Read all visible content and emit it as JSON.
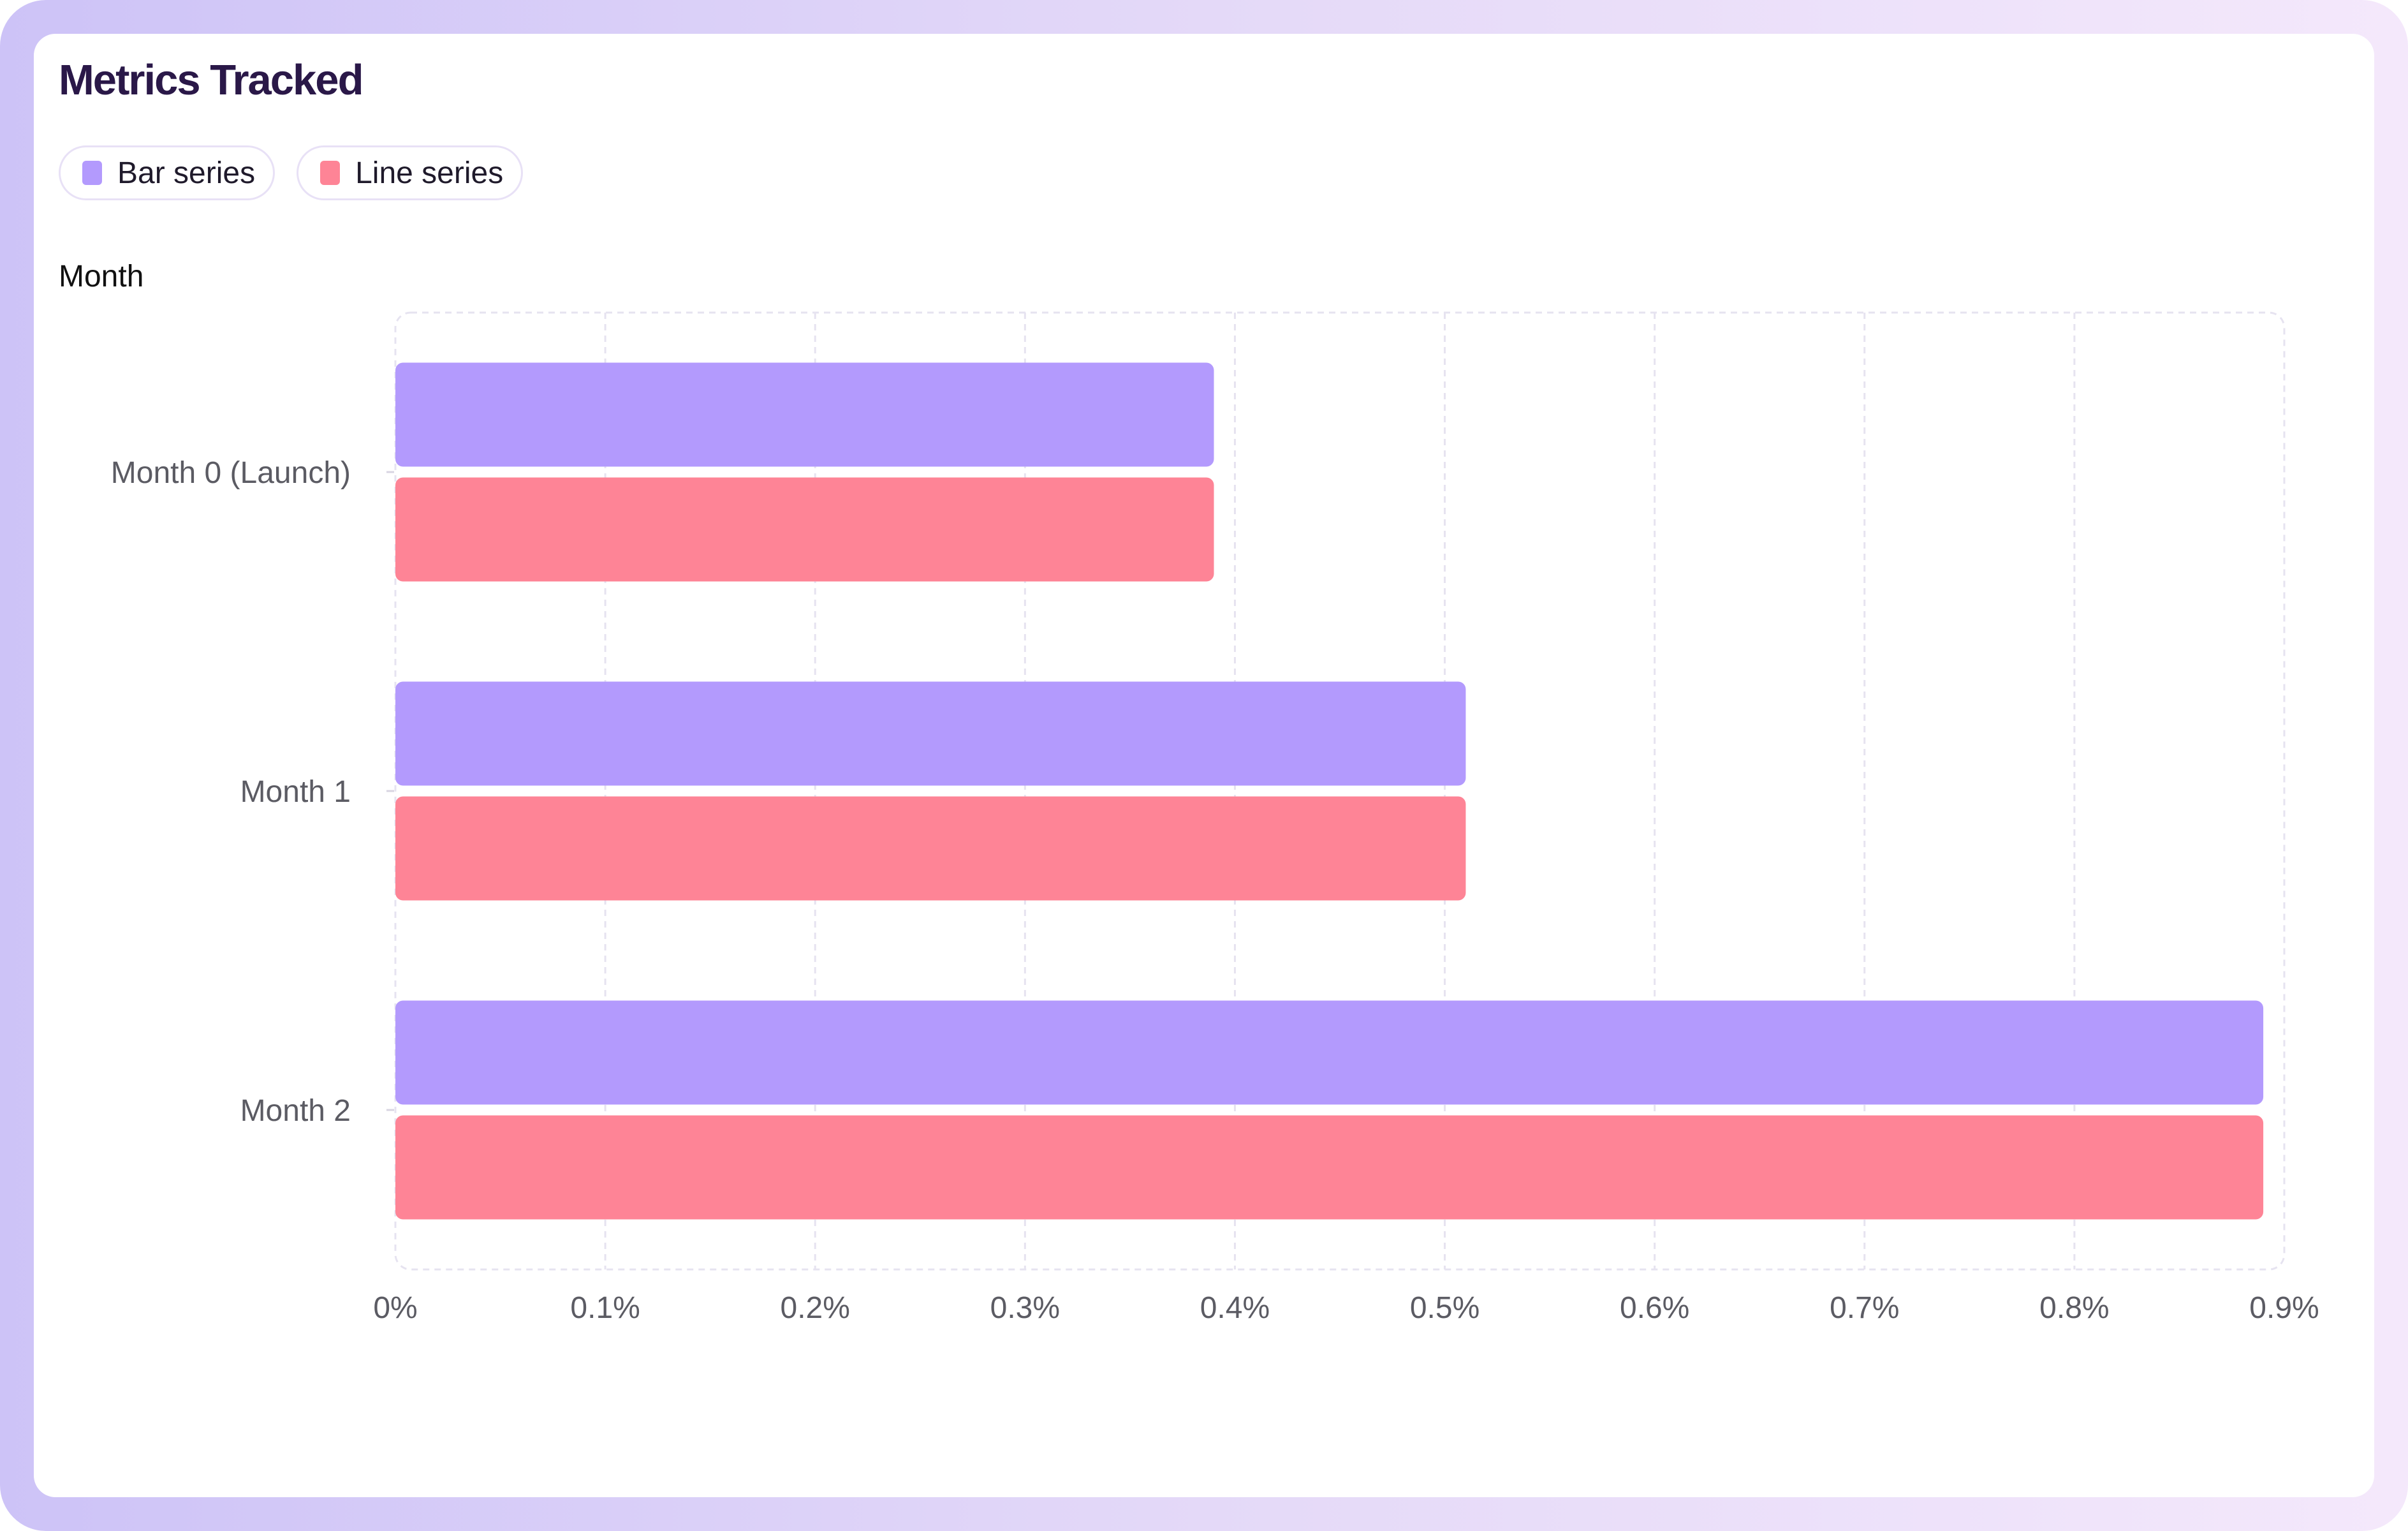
{
  "title": "Metrics Tracked",
  "legend": [
    {
      "label": "Bar series",
      "color": "#b39afd"
    },
    {
      "label": "Line series",
      "color": "#fe8496"
    }
  ],
  "chart_data": {
    "type": "bar",
    "orientation": "horizontal",
    "title": "Metrics Tracked",
    "ylabel": "Month",
    "xlabel": "",
    "categories": [
      "Month 0 (Launch)",
      "Month 1",
      "Month 2"
    ],
    "series": [
      {
        "name": "Bar series",
        "values": [
          0.39,
          0.51,
          0.89
        ],
        "color": "#b39afd"
      },
      {
        "name": "Line series",
        "values": [
          0.39,
          0.51,
          0.89
        ],
        "color": "#fe8496"
      }
    ],
    "xlim": [
      0,
      0.9
    ],
    "xticks": [
      "0%",
      "0.1%",
      "0.2%",
      "0.3%",
      "0.4%",
      "0.5%",
      "0.6%",
      "0.7%",
      "0.8%",
      "0.9%"
    ],
    "grid": true,
    "legend_position": "top-left"
  }
}
